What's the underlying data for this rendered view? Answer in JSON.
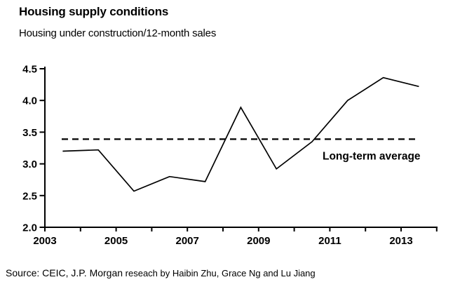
{
  "header": {
    "title": "Housing supply conditions",
    "subtitle": "Housing under construction/12-month sales"
  },
  "source": {
    "prefix": "Source: CEIC, J.P. Morgan",
    "suffix": " reseach by Haibin Zhu, Grace Ng and Lu Jiang"
  },
  "chart_data": {
    "type": "line",
    "title": "Housing supply conditions",
    "subtitle": "Housing under construction/12-month sales",
    "xlabel": "",
    "ylabel": "",
    "x": [
      2003.5,
      2004.5,
      2005.5,
      2006.5,
      2007.5,
      2008.5,
      2009.5,
      2010.5,
      2011.5,
      2012.5,
      2013.5
    ],
    "values": [
      3.2,
      3.22,
      2.57,
      2.8,
      2.72,
      3.89,
      2.92,
      3.35,
      4.0,
      4.36,
      4.22
    ],
    "average_line": {
      "value": 3.39,
      "label": "Long-term average",
      "style": "dashed"
    },
    "xlim": [
      2003,
      2014.1
    ],
    "ylim": [
      2.0,
      4.5
    ],
    "y_ticks": [
      2.0,
      2.5,
      3.0,
      3.5,
      4.0,
      4.5
    ],
    "x_tick_years": [
      2003,
      2004,
      2005,
      2006,
      2007,
      2008,
      2009,
      2010,
      2011,
      2012,
      2013,
      2014
    ],
    "x_label_years": [
      2003,
      2005,
      2007,
      2009,
      2011,
      2013
    ],
    "grid": false,
    "legend_position": "none",
    "line_color": "#000000",
    "axis_color": "#000000",
    "background": "#ffffff"
  }
}
